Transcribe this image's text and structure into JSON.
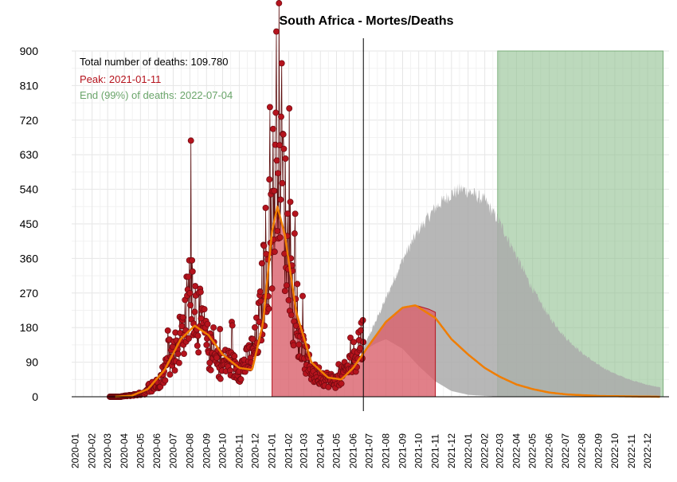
{
  "chart_data": {
    "type": "area",
    "title": "South Africa - Mortes/Deaths",
    "xlabel": "",
    "ylabel": "",
    "x_axis": "date",
    "xlim": [
      "2019-12-25",
      "2023-01-10"
    ],
    "ylim": [
      0,
      900
    ],
    "y_ticks": [
      0,
      90,
      180,
      270,
      360,
      450,
      540,
      630,
      720,
      810,
      900
    ],
    "x_tick_labels": [
      "2020-01",
      "2020-02",
      "2020-03",
      "2020-04",
      "2020-05",
      "2020-06",
      "2020-07",
      "2020-08",
      "2020-09",
      "2020-10",
      "2020-11",
      "2020-12",
      "2021-01",
      "2021-02",
      "2021-03",
      "2021-04",
      "2021-05",
      "2021-06",
      "2021-07",
      "2021-08",
      "2021-09",
      "2021-10",
      "2021-11",
      "2021-12",
      "2022-01",
      "2022-02",
      "2022-03",
      "2022-04",
      "2022-05",
      "2022-06",
      "2022-07",
      "2022-08",
      "2022-09",
      "2022-10",
      "2022-11",
      "2022-12"
    ],
    "grid": true,
    "legend": "none",
    "annotations": {
      "total": "Total number of deaths: 109.780",
      "peak": "Peak: 2021-01-11",
      "end": "End (99%) of deaths: 2022-07-04"
    },
    "current_date": "2021-06-20",
    "green_band": {
      "start": "2022-02-25",
      "end": "2022-12-30",
      "top": 900
    },
    "colors": {
      "observed_points": "#b5131d",
      "observed_line": "#5a0a0a",
      "fit_curve": "#f07d00",
      "red_fill": "#d9606b",
      "gray_projection": "#aaaaaa",
      "green_band": "#8fbf8f",
      "peak_text": "#b5131d",
      "end_text": "#6aa56a"
    },
    "series": [
      {
        "role": "observed daily deaths",
        "points": [
          [
            "2020-03-27",
            1
          ],
          [
            "2020-04-10",
            3
          ],
          [
            "2020-04-24",
            6
          ],
          [
            "2020-05-08",
            10
          ],
          [
            "2020-05-22",
            20
          ],
          [
            "2020-06-05",
            40
          ],
          [
            "2020-06-19",
            80
          ],
          [
            "2020-07-01",
            110
          ],
          [
            "2020-07-10",
            140
          ],
          [
            "2020-07-18",
            175
          ],
          [
            "2020-07-25",
            210
          ],
          [
            "2020-08-01",
            290
          ],
          [
            "2020-08-05",
            310
          ],
          [
            "2020-08-10",
            240
          ],
          [
            "2020-08-18",
            200
          ],
          [
            "2020-08-25",
            180
          ],
          [
            "2020-09-01",
            140
          ],
          [
            "2020-09-10",
            110
          ],
          [
            "2020-09-20",
            90
          ],
          [
            "2020-10-01",
            80
          ],
          [
            "2020-10-10",
            95
          ],
          [
            "2020-10-20",
            80
          ],
          [
            "2020-11-01",
            70
          ],
          [
            "2020-11-15",
            90
          ],
          [
            "2020-12-01",
            130
          ],
          [
            "2020-12-10",
            200
          ],
          [
            "2020-12-20",
            350
          ],
          [
            "2020-12-28",
            420
          ],
          [
            "2021-01-04",
            520
          ],
          [
            "2021-01-08",
            650
          ],
          [
            "2021-01-11",
            780
          ],
          [
            "2021-01-15",
            700
          ],
          [
            "2021-01-20",
            600
          ],
          [
            "2021-01-26",
            450
          ],
          [
            "2021-02-01",
            350
          ],
          [
            "2021-02-08",
            260
          ],
          [
            "2021-02-15",
            180
          ],
          [
            "2021-02-22",
            140
          ],
          [
            "2021-03-01",
            110
          ],
          [
            "2021-03-10",
            80
          ],
          [
            "2021-03-20",
            60
          ],
          [
            "2021-04-01",
            55
          ],
          [
            "2021-04-15",
            45
          ],
          [
            "2021-05-01",
            40
          ],
          [
            "2021-05-15",
            60
          ],
          [
            "2021-06-01",
            100
          ],
          [
            "2021-06-15",
            150
          ]
        ]
      },
      {
        "role": "fitted curve",
        "points": [
          [
            "2020-03-15",
            0
          ],
          [
            "2020-04-15",
            3
          ],
          [
            "2020-05-15",
            20
          ],
          [
            "2020-06-15",
            70
          ],
          [
            "2020-07-15",
            150
          ],
          [
            "2020-08-10",
            185
          ],
          [
            "2020-09-05",
            160
          ],
          [
            "2020-10-01",
            110
          ],
          [
            "2020-11-01",
            75
          ],
          [
            "2020-11-25",
            70
          ],
          [
            "2020-12-15",
            190
          ],
          [
            "2021-01-01",
            430
          ],
          [
            "2021-01-11",
            495
          ],
          [
            "2021-01-25",
            420
          ],
          [
            "2021-02-15",
            220
          ],
          [
            "2021-03-15",
            90
          ],
          [
            "2021-04-15",
            50
          ],
          [
            "2021-05-10",
            45
          ],
          [
            "2021-06-01",
            75
          ],
          [
            "2021-07-01",
            135
          ],
          [
            "2021-08-01",
            195
          ],
          [
            "2021-09-01",
            232
          ],
          [
            "2021-09-25",
            238
          ],
          [
            "2021-11-01",
            205
          ],
          [
            "2021-12-01",
            150
          ],
          [
            "2022-01-01",
            110
          ],
          [
            "2022-02-01",
            75
          ],
          [
            "2022-03-01",
            52
          ],
          [
            "2022-04-01",
            32
          ],
          [
            "2022-05-01",
            20
          ],
          [
            "2022-06-01",
            11
          ],
          [
            "2022-07-04",
            6
          ],
          [
            "2022-09-01",
            2
          ],
          [
            "2022-12-25",
            0
          ]
        ]
      },
      {
        "role": "projection band",
        "points": [
          [
            "2021-06-20",
            130
          ],
          [
            "2021-08-01",
            265
          ],
          [
            "2021-09-01",
            370
          ],
          [
            "2021-10-01",
            450
          ],
          [
            "2021-11-01",
            510
          ],
          [
            "2021-12-01",
            548
          ],
          [
            "2021-12-20",
            560
          ],
          [
            "2022-01-01",
            555
          ],
          [
            "2022-02-01",
            530
          ],
          [
            "2022-03-01",
            470
          ],
          [
            "2022-04-01",
            380
          ],
          [
            "2022-05-01",
            290
          ],
          [
            "2022-06-01",
            215
          ],
          [
            "2022-07-01",
            160
          ],
          [
            "2022-08-01",
            118
          ],
          [
            "2022-09-01",
            85
          ],
          [
            "2022-10-01",
            62
          ],
          [
            "2022-11-01",
            45
          ],
          [
            "2022-12-01",
            32
          ],
          [
            "2022-12-25",
            25
          ]
        ]
      },
      {
        "role": "projection band lower",
        "points": [
          [
            "2021-06-20",
            120
          ],
          [
            "2021-07-15",
            140
          ],
          [
            "2021-08-01",
            150
          ],
          [
            "2021-09-01",
            125
          ],
          [
            "2021-10-01",
            80
          ],
          [
            "2021-11-01",
            40
          ],
          [
            "2021-12-01",
            15
          ],
          [
            "2022-01-01",
            5
          ],
          [
            "2022-03-01",
            0
          ],
          [
            "2022-12-25",
            0
          ]
        ]
      },
      {
        "role": "filled area",
        "points": [
          [
            "2021-01-01",
            0
          ],
          [
            "2021-01-01",
            360
          ],
          [
            "2021-01-11",
            480
          ],
          [
            "2021-01-25",
            420
          ],
          [
            "2021-02-15",
            220
          ],
          [
            "2021-03-15",
            90
          ],
          [
            "2021-04-15",
            50
          ],
          [
            "2021-05-10",
            45
          ],
          [
            "2021-06-01",
            75
          ],
          [
            "2021-07-01",
            135
          ],
          [
            "2021-08-01",
            195
          ],
          [
            "2021-09-01",
            232
          ],
          [
            "2021-09-25",
            238
          ],
          [
            "2021-10-20",
            228
          ],
          [
            "2021-11-01",
            220
          ],
          [
            "2021-11-01",
            0
          ]
        ]
      }
    ]
  }
}
